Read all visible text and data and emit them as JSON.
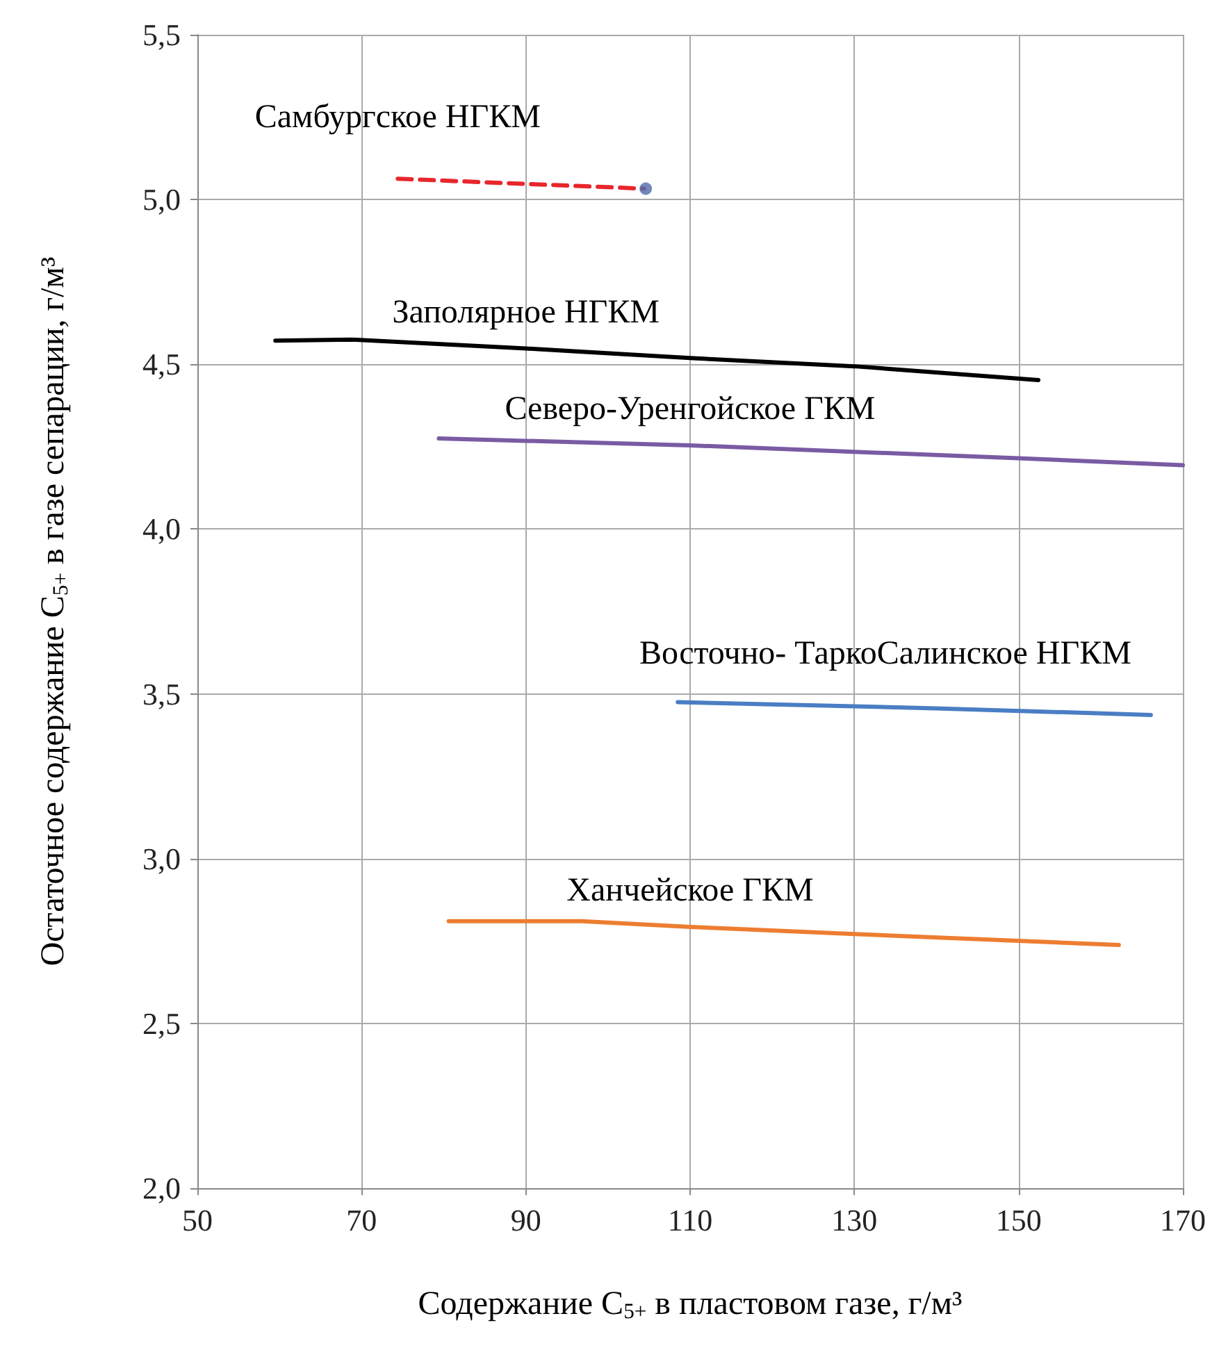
{
  "chart_data": {
    "type": "line",
    "xlabel": "Содержание С$_{5+}$ в пластовом газе, г/м³",
    "ylabel": "Остаточное содержание С$_{5+}$ в газе сепарации, г/м³",
    "xlim": [
      50,
      170
    ],
    "xticks": [
      50,
      70,
      90,
      110,
      130,
      150,
      170
    ],
    "ylim": [
      2.0,
      5.5
    ],
    "yticks": [
      {
        "value": 2.0,
        "label": "2,0"
      },
      {
        "value": 2.5,
        "label": "2,5"
      },
      {
        "value": 3.0,
        "label": "3,0"
      },
      {
        "value": 3.5,
        "label": "3,5"
      },
      {
        "value": 4.0,
        "label": "4,0"
      },
      {
        "value": 4.5,
        "label": "4,5"
      },
      {
        "value": 5.0,
        "label": "5,0"
      },
      {
        "value": 5.5,
        "label": "5,5"
      }
    ],
    "grid": true,
    "legend": false,
    "marker": "none",
    "series": [
      {
        "name": "Самбургское НГКМ",
        "color": "#e8262b",
        "line_style": "dashed",
        "x": [
          74.4,
          104.4
        ],
        "values": [
          5.063,
          5.033
        ]
      },
      {
        "type": "scatter",
        "marker": "circle",
        "color": "#4f6bab",
        "x": [
          104.6
        ],
        "values": [
          5.033
        ]
      },
      {
        "name": "Заполярное НГКМ",
        "color": "#000000",
        "x": [
          59.5,
          68.7,
          90,
          110,
          130,
          152.4
        ],
        "values": [
          4.572,
          4.575,
          4.548,
          4.519,
          4.494,
          4.452
        ]
      },
      {
        "name": "Северо-Уренгойское ГКМ",
        "color": "#7a5ba3",
        "x": [
          79.4,
          110,
          150,
          170
        ],
        "values": [
          4.275,
          4.254,
          4.215,
          4.194
        ]
      },
      {
        "name": "Восточно- ТаркоСалинское НГКМ",
        "color": "#4a7ec4",
        "x": [
          108.5,
          140,
          166.1
        ],
        "values": [
          3.475,
          3.456,
          3.436
        ]
      },
      {
        "name": "Ханчейское ГКМ",
        "color": "#ed7d31",
        "x": [
          80.6,
          96.8,
          110,
          130,
          162.2
        ],
        "values": [
          2.81,
          2.81,
          2.793,
          2.771,
          2.738
        ]
      }
    ]
  }
}
